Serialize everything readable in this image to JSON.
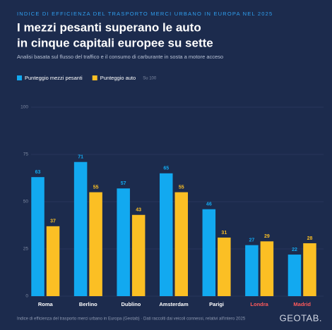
{
  "chart_data": {
    "type": "bar",
    "supertitle": "INDICE DI EFFICIENZA DEL TRASPORTO MERCI URBANO IN EUROPA NEL 2025",
    "title": [
      "I mezzi pesanti superano le auto",
      "in cinque capitali europee su sette"
    ],
    "subtitle": "Analisi basata sul flusso del traffico e il consumo di carburante in sosta a motore acceso",
    "unit_note": "Su 100",
    "categories": [
      "Roma",
      "Berlino",
      "Dublino",
      "Amsterdam",
      "Parigi",
      "Londra",
      "Madrid"
    ],
    "category_label_colors": [
      "#ffffff",
      "#ffffff",
      "#ffffff",
      "#ffffff",
      "#ffffff",
      "#ff5a5a",
      "#ff5a5a"
    ],
    "series": [
      {
        "name": "Punteggio mezzi pesanti",
        "color": "#12a9f0",
        "values": [
          63,
          71,
          57,
          65,
          46,
          27,
          22
        ]
      },
      {
        "name": "Punteggio auto",
        "color": "#fbbf24",
        "values": [
          37,
          55,
          43,
          55,
          31,
          29,
          28
        ]
      }
    ],
    "ylim": [
      0,
      100
    ],
    "yticks": [
      0,
      25,
      50,
      75,
      100
    ],
    "grid": true,
    "footer": "Indice di efficienza del trasporto merci urbano in Europa (Geotab) · Dati raccolti dai veicoli connessi, relativi all'intero 2025",
    "logo": "GEOTAB."
  }
}
